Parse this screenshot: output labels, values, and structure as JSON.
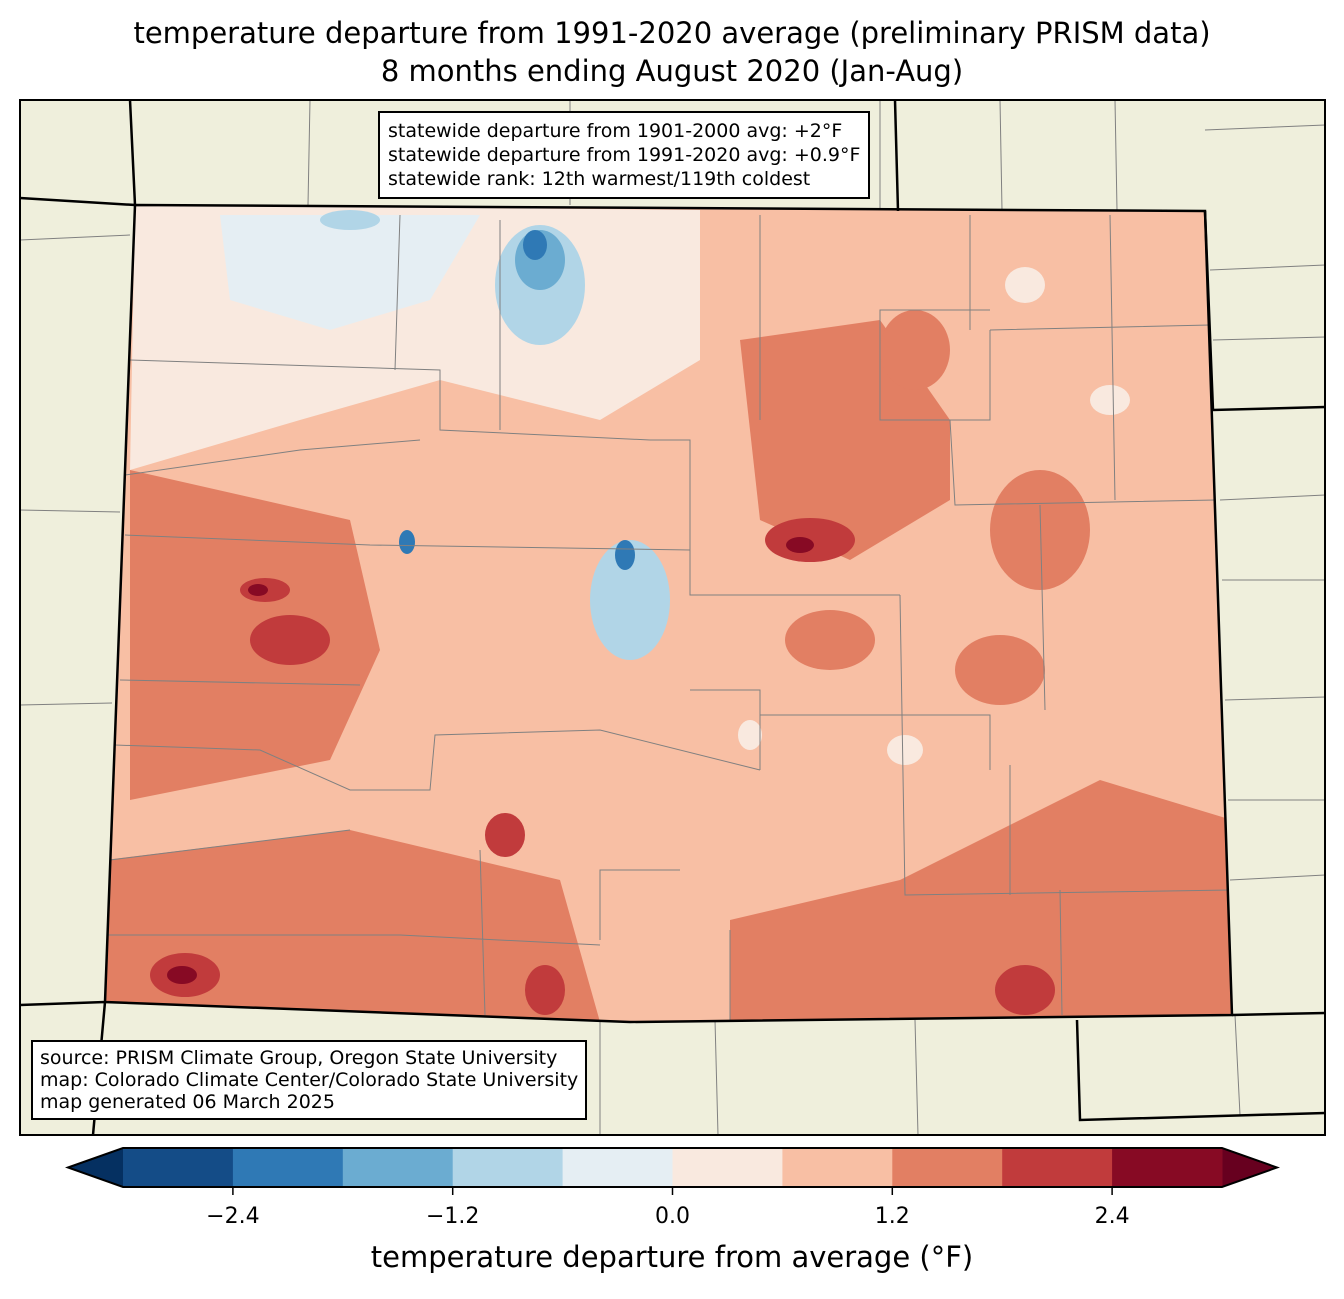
{
  "title": {
    "line1": "temperature departure from 1991-2020 average (preliminary PRISM data)",
    "line2": "8 months ending August 2020 (Jan-Aug)"
  },
  "info_box": {
    "lines": [
      "statewide departure from 1901-2000 avg: +2°F",
      "statewide departure from 1991-2020 avg: +0.9°F",
      "statewide rank: 12th warmest/119th coldest"
    ]
  },
  "source_box": {
    "lines": [
      "source: PRISM Climate Group, Oregon State University",
      "map: Colorado Climate Center/Colorado State University",
      "map generated 06 March 2025"
    ]
  },
  "colorbar": {
    "label": "temperature departure from average (°F)",
    "ticks": [
      "−2.4",
      "−1.2",
      "0.0",
      "1.2",
      "2.4"
    ],
    "tick_values": [
      -2.4,
      -1.2,
      0.0,
      1.2,
      2.4
    ],
    "range": [
      -3.0,
      3.0
    ],
    "colors": [
      "#144c87",
      "#2f79b5",
      "#6bacd1",
      "#b1d5e7",
      "#e5eef3",
      "#f9e9df",
      "#f8bfa4",
      "#e27f63",
      "#c13b3c",
      "#870a24"
    ],
    "extend_low": "#053061",
    "extend_high": "#67001f"
  },
  "colors": {
    "land": "#efefdc",
    "state_border": "#000000",
    "county_border": "#808080"
  }
}
